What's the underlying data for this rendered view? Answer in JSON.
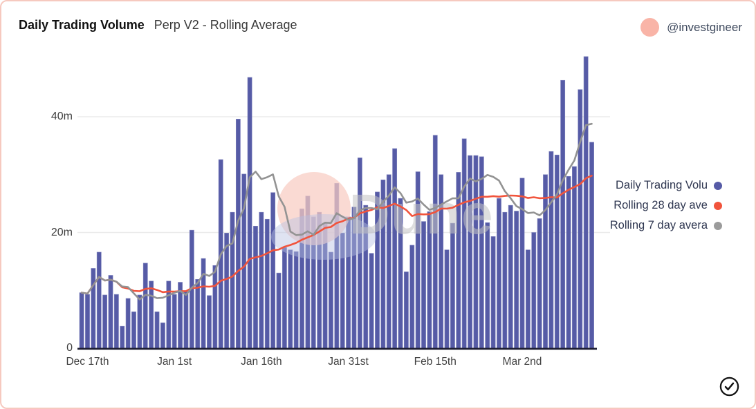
{
  "header": {
    "title": "Daily Trading Volume",
    "subtitle": "Perp V2 - Rolling Average",
    "handle": "@investgineer"
  },
  "legend": [
    {
      "label": "Daily Trading Volu",
      "color": "#565ba6"
    },
    {
      "label": "Rolling 28 day ave",
      "color": "#f1543c"
    },
    {
      "label": "Rolling 7 day avera",
      "color": "#9b9b9b"
    }
  ],
  "watermark": {
    "text": "Dune",
    "circle_color": "#f8ccc2",
    "crescent_color": "#b8c2e2",
    "text_color": "#c4c4c4"
  },
  "chart_data": {
    "type": "bar",
    "title": "Daily Trading Volume - Perp V2 - Rolling Average",
    "xlabel": "",
    "ylabel": "",
    "unit": "m",
    "ylim": [
      0,
      52
    ],
    "grid": "horizontal",
    "legend_position": "right",
    "x_tick_labels": [
      "Dec 17th",
      "Jan 1st",
      "Jan 16th",
      "Jan 31st",
      "Feb 15th",
      "Mar 2nd"
    ],
    "x_tick_indices": [
      1,
      16,
      31,
      46,
      61,
      76
    ],
    "y_ticks": [
      {
        "value": 0,
        "label": "0"
      },
      {
        "value": 20,
        "label": "20m"
      },
      {
        "value": 40,
        "label": "40m"
      }
    ],
    "x": [
      "Dec 16",
      "Dec 17",
      "Dec 18",
      "Dec 19",
      "Dec 20",
      "Dec 21",
      "Dec 22",
      "Dec 23",
      "Dec 24",
      "Dec 25",
      "Dec 26",
      "Dec 27",
      "Dec 28",
      "Dec 29",
      "Dec 30",
      "Dec 31",
      "Jan 1",
      "Jan 2",
      "Jan 3",
      "Jan 4",
      "Jan 5",
      "Jan 6",
      "Jan 7",
      "Jan 8",
      "Jan 9",
      "Jan 10",
      "Jan 11",
      "Jan 12",
      "Jan 13",
      "Jan 14",
      "Jan 15",
      "Jan 16",
      "Jan 17",
      "Jan 18",
      "Jan 19",
      "Jan 20",
      "Jan 21",
      "Jan 22",
      "Jan 23",
      "Jan 24",
      "Jan 25",
      "Jan 26",
      "Jan 27",
      "Jan 28",
      "Jan 29",
      "Jan 30",
      "Jan 31",
      "Feb 1",
      "Feb 2",
      "Feb 3",
      "Feb 4",
      "Feb 5",
      "Feb 6",
      "Feb 7",
      "Feb 8",
      "Feb 9",
      "Feb 10",
      "Feb 11",
      "Feb 12",
      "Feb 13",
      "Feb 14",
      "Feb 15",
      "Feb 16",
      "Feb 17",
      "Feb 18",
      "Feb 19",
      "Feb 20",
      "Feb 21",
      "Feb 22",
      "Feb 23",
      "Feb 24",
      "Feb 25",
      "Feb 26",
      "Feb 27",
      "Feb 28",
      "Mar 1",
      "Mar 2",
      "Mar 3",
      "Mar 4",
      "Mar 5",
      "Mar 6",
      "Mar 7",
      "Mar 8",
      "Mar 9",
      "Mar 10",
      "Mar 11",
      "Mar 12",
      "Mar 13",
      "Mar 14"
    ],
    "series": [
      {
        "name": "Daily Trading Volume",
        "type": "bar",
        "color": "#565ba6",
        "values": [
          9.6,
          9.3,
          13.8,
          16.6,
          9.2,
          12.6,
          9.3,
          3.8,
          8.6,
          6.3,
          9.2,
          14.7,
          11.6,
          6.3,
          4.4,
          11.6,
          9.3,
          11.4,
          9.8,
          20.4,
          11.9,
          15.5,
          9.1,
          14.3,
          32.6,
          19.9,
          23.5,
          39.6,
          30.1,
          46.8,
          21.1,
          23.5,
          22.3,
          26.9,
          13.0,
          17.4,
          17.0,
          16.7,
          24.1,
          26.3,
          22.7,
          23.5,
          21.6,
          16.6,
          28.5,
          19.9,
          22.7,
          24.4,
          32.9,
          24.7,
          16.4,
          27.0,
          29.1,
          30.0,
          34.5,
          25.9,
          13.2,
          17.8,
          30.5,
          21.9,
          23.6,
          36.8,
          30.0,
          17.0,
          21.6,
          30.4,
          36.2,
          33.3,
          33.3,
          33.1,
          21.7,
          19.3,
          25.9,
          23.5,
          24.7,
          23.7,
          29.4,
          17.0,
          20.0,
          22.4,
          30.0,
          34.0,
          33.4,
          46.3,
          29.7,
          31.4,
          44.7,
          50.4,
          35.6
        ]
      },
      {
        "name": "Rolling 28 day average",
        "type": "line",
        "color": "#f1543c",
        "window": 28,
        "derived": "rolling_mean_of_bar_values"
      },
      {
        "name": "Rolling 7 day average",
        "type": "line",
        "color": "#939393",
        "window": 7,
        "derived": "rolling_mean_of_bar_values"
      }
    ]
  }
}
